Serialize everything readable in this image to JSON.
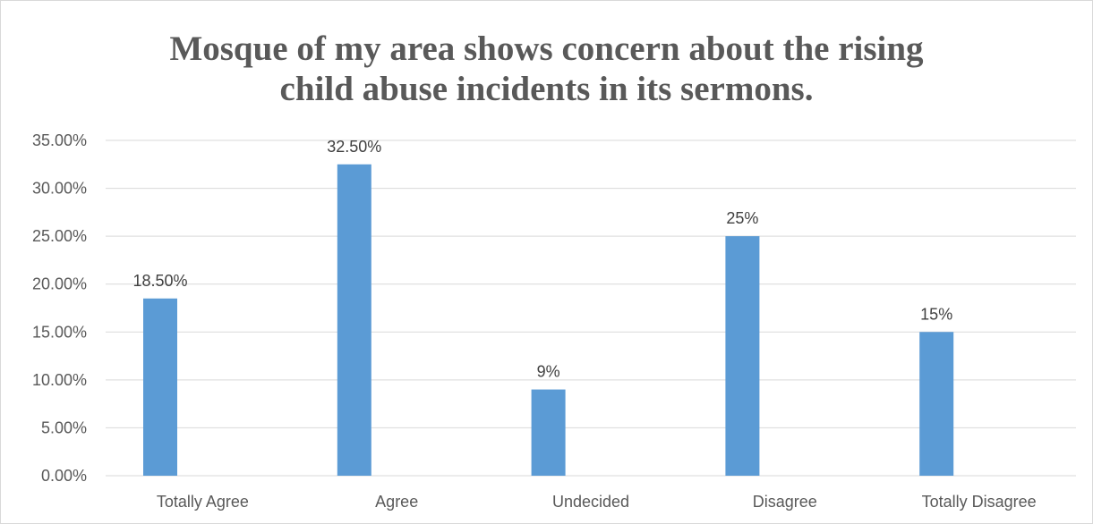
{
  "chart_data": {
    "type": "bar",
    "title_lines": [
      "Mosque of my area shows concern about the rising",
      "child abuse incidents in its sermons."
    ],
    "xlabel": "",
    "ylabel": "",
    "categories": [
      "Totally Agree",
      "Agree",
      "Undecided",
      "Disagree",
      "Totally Disagree"
    ],
    "values": [
      18.5,
      32.5,
      9,
      25,
      15
    ],
    "data_labels": [
      "18.50%",
      "32.50%",
      "9%",
      "25%",
      "15%"
    ],
    "ylim": [
      0,
      35
    ],
    "yticks": [
      0,
      5,
      10,
      15,
      20,
      25,
      30,
      35
    ],
    "ytick_labels": [
      "0.00%",
      "5.00%",
      "10.00%",
      "15.00%",
      "20.00%",
      "25.00%",
      "30.00%",
      "35.00%"
    ],
    "grid": true,
    "legend": "none",
    "bar_color": "#5b9bd5",
    "grid_color": "#d9d9d9"
  }
}
